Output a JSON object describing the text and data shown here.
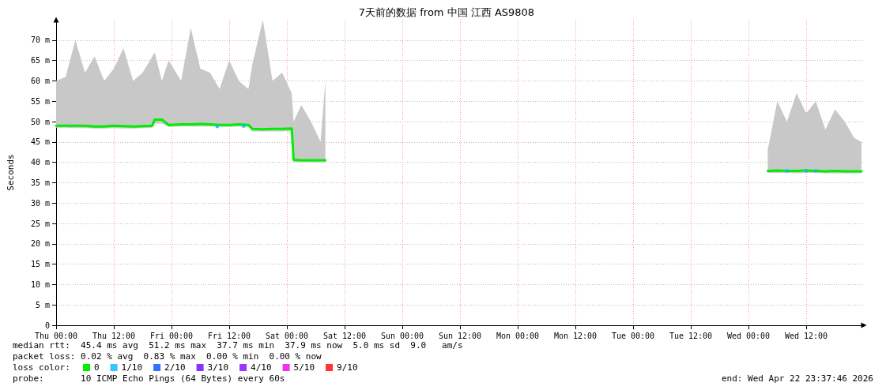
{
  "chart_data": {
    "type": "line",
    "title": "7天前的数据 from 中国 江西 AS9808",
    "ylabel": "Seconds",
    "legend_title": "loss color:",
    "legend": "bottom left",
    "grid": true,
    "marker": "none",
    "line_style": "solid",
    "xlim": [
      "2026-04-16T00:00",
      "2026-04-23T00:00"
    ],
    "xticks": [
      {
        "value": "2026-04-16T00:00",
        "label": "Thu 00:00"
      },
      {
        "value": "2026-04-16T12:00",
        "label": "Thu 12:00"
      },
      {
        "value": "2026-04-17T00:00",
        "label": "Fri 00:00"
      },
      {
        "value": "2026-04-17T12:00",
        "label": "Fri 12:00"
      },
      {
        "value": "2026-04-18T00:00",
        "label": "Sat 00:00"
      },
      {
        "value": "2026-04-18T12:00",
        "label": "Sat 12:00"
      },
      {
        "value": "2026-04-19T00:00",
        "label": "Sun 00:00"
      },
      {
        "value": "2026-04-19T12:00",
        "label": "Sun 12:00"
      },
      {
        "value": "2026-04-20T00:00",
        "label": "Mon 00:00"
      },
      {
        "value": "2026-04-20T12:00",
        "label": "Mon 12:00"
      },
      {
        "value": "2026-04-21T00:00",
        "label": "Tue 00:00"
      },
      {
        "value": "2026-04-21T12:00",
        "label": "Tue 12:00"
      },
      {
        "value": "2026-04-22T00:00",
        "label": "Wed 00:00"
      },
      {
        "value": "2026-04-22T12:00",
        "label": "Wed 12:00"
      }
    ],
    "ylim": [
      0,
      75
    ],
    "yticks": [
      0,
      {
        "value": 5,
        "label": "5 m"
      },
      {
        "value": 10,
        "label": "10 m"
      },
      {
        "value": 15,
        "label": "15 m"
      },
      {
        "value": 20,
        "label": "20 m"
      },
      {
        "value": 25,
        "label": "25 m"
      },
      {
        "value": 30,
        "label": "30 m"
      },
      {
        "value": 35,
        "label": "35 m"
      },
      {
        "value": 40,
        "label": "40 m"
      },
      {
        "value": 45,
        "label": "45 m"
      },
      {
        "value": 50,
        "label": "50 m"
      },
      {
        "value": 55,
        "label": "55 m"
      },
      {
        "value": 60,
        "label": "60 m"
      },
      {
        "value": 65,
        "label": "65 m"
      },
      {
        "value": 70,
        "label": "70 m"
      }
    ],
    "series": [
      {
        "name": "0",
        "color": "#00ee00",
        "x": [
          "2026-04-16T00:00",
          "2026-04-16T02:00",
          "2026-04-16T04:00",
          "2026-04-16T06:00",
          "2026-04-16T08:00",
          "2026-04-16T10:00",
          "2026-04-16T12:00",
          "2026-04-16T14:00",
          "2026-04-16T16:00",
          "2026-04-16T18:00",
          "2026-04-16T20:00",
          "2026-04-16T20:30",
          "2026-04-16T22:00",
          "2026-04-16T23:24",
          "2026-04-17T02:00",
          "2026-04-17T04:00",
          "2026-04-17T06:00",
          "2026-04-17T08:00",
          "2026-04-17T10:00",
          "2026-04-17T12:00",
          "2026-04-17T14:00",
          "2026-04-17T16:00",
          "2026-04-17T16:48",
          "2026-04-17T19:00",
          "2026-04-17T21:00",
          "2026-04-17T23:00",
          "2026-04-18T01:00",
          "2026-04-18T01:24",
          "2026-04-18T03:00",
          "2026-04-18T05:00",
          "2026-04-18T07:00",
          "2026-04-18T08:00",
          "2026-04-18T09:00",
          "2026-04-22T04:00",
          "2026-04-22T06:00",
          "2026-04-22T08:00",
          "2026-04-22T10:00",
          "2026-04-22T12:00",
          "2026-04-22T14:00",
          "2026-04-22T16:00",
          "2026-04-22T18:00",
          "2026-04-22T20:00",
          "2026-04-22T22:00",
          "2026-04-22T23:30"
        ],
        "values": [
          49,
          49,
          49,
          49,
          48.8,
          48.8,
          49,
          48.9,
          48.8,
          48.9,
          49,
          50.5,
          50.5,
          49.2,
          49.3,
          49.3,
          49.4,
          49.3,
          49.2,
          49.2,
          49.3,
          49.2,
          48.2,
          48.1,
          48.2,
          48.2,
          48.3,
          40.6,
          40.5,
          40.5,
          40.5,
          40.5,
          null,
          37.9,
          38,
          37.9,
          37.9,
          38,
          37.9,
          37.8,
          37.9,
          37.8,
          37.8,
          37.8
        ],
        "lower": [
          48.5,
          48.5,
          48.4,
          48.4,
          48.3,
          48.3,
          48.4,
          48.3,
          48.3,
          48.4,
          48.5,
          49.5,
          49.5,
          48.7,
          48.8,
          48.8,
          48.8,
          48.8,
          48.7,
          48.7,
          48.8,
          48.7,
          47.6,
          47.6,
          47.6,
          47.6,
          47.7,
          40,
          40,
          40,
          40,
          40,
          null,
          37.4,
          37.4,
          37.4,
          37.3,
          37.4,
          37.4,
          37.3,
          37.3,
          37.3,
          37.3,
          37.3
        ],
        "upper": [
          60,
          61,
          70,
          62,
          66,
          60,
          63,
          68,
          60,
          62,
          66,
          67,
          60,
          65,
          60,
          73,
          63,
          62,
          58,
          65,
          60,
          58,
          64,
          75,
          60,
          62,
          57,
          50,
          54,
          50,
          45,
          60,
          null,
          43,
          55,
          50,
          57,
          52,
          55,
          48,
          53,
          50,
          46,
          45
        ]
      },
      {
        "name": "1/10",
        "color": "#00b8ff",
        "type": "scatter",
        "marker": "square",
        "x": [
          "2026-04-17T09:30",
          "2026-04-17T15:00",
          "2026-04-22T08:00",
          "2026-04-22T12:00",
          "2026-04-22T14:00"
        ],
        "values": [
          48.8,
          48.9,
          37.9,
          37.9,
          37.9
        ]
      },
      {
        "name": "2/10",
        "color": "#0050ff",
        "type": "scatter"
      },
      {
        "name": "3/10",
        "color": "#6a00ff",
        "type": "scatter"
      },
      {
        "name": "4/10",
        "color": "#8800ff",
        "type": "scatter"
      },
      {
        "name": "5/10",
        "color": "#ee00ee",
        "type": "scatter"
      },
      {
        "name": "9/10",
        "color": "#ff0000",
        "type": "scatter"
      }
    ],
    "annotations": [
      "median rtt:  45.4 ms avg  51.2 ms max  37.7 ms min  37.9 ms now  5.0 ms sd  9.0   am/s",
      "packet loss: 0.02 % avg  0.83 % max  0.00 % min  0.00 % now",
      "probe:       10 ICMP Echo Pings (64 Bytes) every 60s",
      "end: Wed Apr 22 23:37:46 2026"
    ]
  }
}
